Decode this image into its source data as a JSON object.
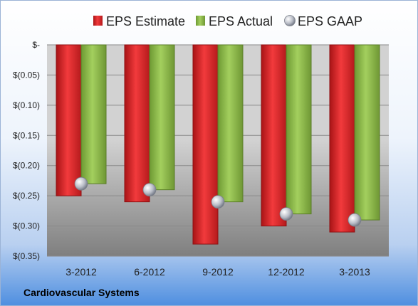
{
  "footer": {
    "company": "Cardiovascular Systems"
  },
  "colors": {
    "estimate": "#e0262a",
    "actual": "#8cb84a",
    "gaap": "#b8bcc6",
    "plot_top": "#d2d2d2",
    "plot_bottom": "#7f7f7f"
  },
  "chart_data": {
    "type": "bar",
    "title": "",
    "xlabel": "",
    "ylabel": "",
    "categories": [
      "3-2012",
      "6-2012",
      "9-2012",
      "12-2012",
      "3-2013"
    ],
    "series": [
      {
        "name": "EPS Estimate",
        "kind": "bar",
        "values": [
          -0.25,
          -0.26,
          -0.33,
          -0.3,
          -0.31
        ]
      },
      {
        "name": "EPS Actual",
        "kind": "bar",
        "values": [
          -0.23,
          -0.24,
          -0.26,
          -0.28,
          -0.29
        ]
      },
      {
        "name": "EPS GAAP",
        "kind": "marker",
        "values": [
          -0.23,
          -0.24,
          -0.26,
          -0.28,
          -0.29
        ]
      }
    ],
    "ylim": [
      -0.35,
      0
    ],
    "yticks": [
      0,
      -0.05,
      -0.1,
      -0.15,
      -0.2,
      -0.25,
      -0.3,
      -0.35
    ],
    "ytick_labels": [
      "$-",
      "$(0.05)",
      "$(0.10)",
      "$(0.15)",
      "$(0.20)",
      "$(0.25)",
      "$(0.30)",
      "$(0.35)"
    ],
    "grid": true,
    "legend": "top"
  }
}
